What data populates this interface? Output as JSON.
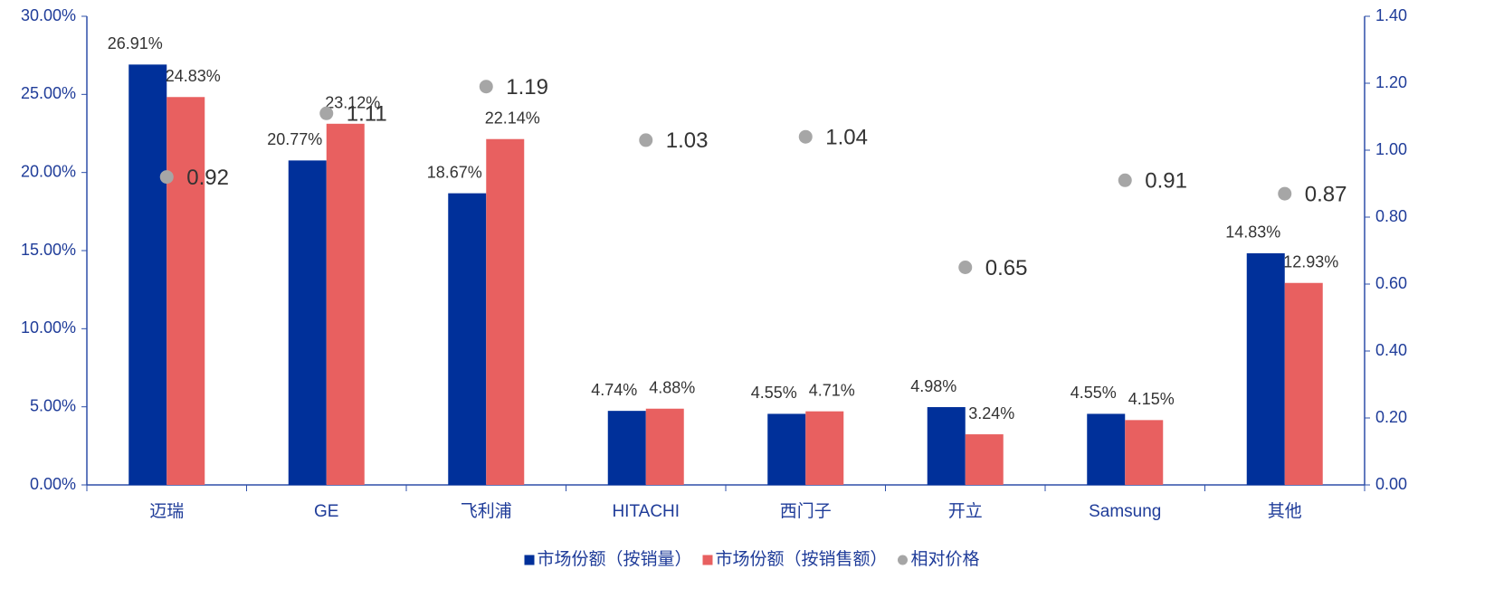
{
  "chart_data": {
    "type": "bar",
    "categories": [
      "迈瑞",
      "GE",
      "飞利浦",
      "HITACHI",
      "西门子",
      "开立",
      "Samsung",
      "其他"
    ],
    "series": [
      {
        "name": "市场份额（按销量）",
        "type": "bar",
        "color": "#00309a",
        "values": [
          26.91,
          20.77,
          18.67,
          4.74,
          4.55,
          4.98,
          4.55,
          14.83
        ],
        "value_labels": [
          "26.91%",
          "20.77%",
          "18.67%",
          "4.74%",
          "4.55%",
          "4.98%",
          "4.55%",
          "14.83%"
        ]
      },
      {
        "name": "市场份额（按销售额）",
        "type": "bar",
        "color": "#e86060",
        "values": [
          24.83,
          23.12,
          22.14,
          4.88,
          4.71,
          3.24,
          4.15,
          12.93
        ],
        "value_labels": [
          "24.83%",
          "23.12%",
          "22.14%",
          "4.88%",
          "4.71%",
          "3.24%",
          "4.15%",
          "12.93%"
        ]
      },
      {
        "name": "相对价格",
        "type": "scatter",
        "axis": "y2",
        "color": "#a6a6a6",
        "values": [
          0.92,
          1.11,
          1.19,
          1.03,
          1.04,
          0.65,
          0.91,
          0.87
        ]
      }
    ],
    "ylim": [
      0,
      30
    ],
    "yticks": [
      {
        "value": 0,
        "label": "0.00%"
      },
      {
        "value": 5,
        "label": "5.00%"
      },
      {
        "value": 10,
        "label": "10.00%"
      },
      {
        "value": 15,
        "label": "15.00%"
      },
      {
        "value": 20,
        "label": "20.00%"
      },
      {
        "value": 25,
        "label": "25.00%"
      },
      {
        "value": 30,
        "label": "30.00%"
      }
    ],
    "y2lim": [
      0,
      1.4
    ],
    "y2ticks": [
      {
        "value": 0,
        "label": "0.00"
      },
      {
        "value": 0.2,
        "label": "0.20"
      },
      {
        "value": 0.4,
        "label": "0.40"
      },
      {
        "value": 0.6,
        "label": "0.60"
      },
      {
        "value": 0.8,
        "label": "0.80"
      },
      {
        "value": 1.0,
        "label": "1.00"
      },
      {
        "value": 1.2,
        "label": "1.20"
      },
      {
        "value": 1.4,
        "label": "1.40"
      }
    ],
    "legend": "bottom"
  }
}
